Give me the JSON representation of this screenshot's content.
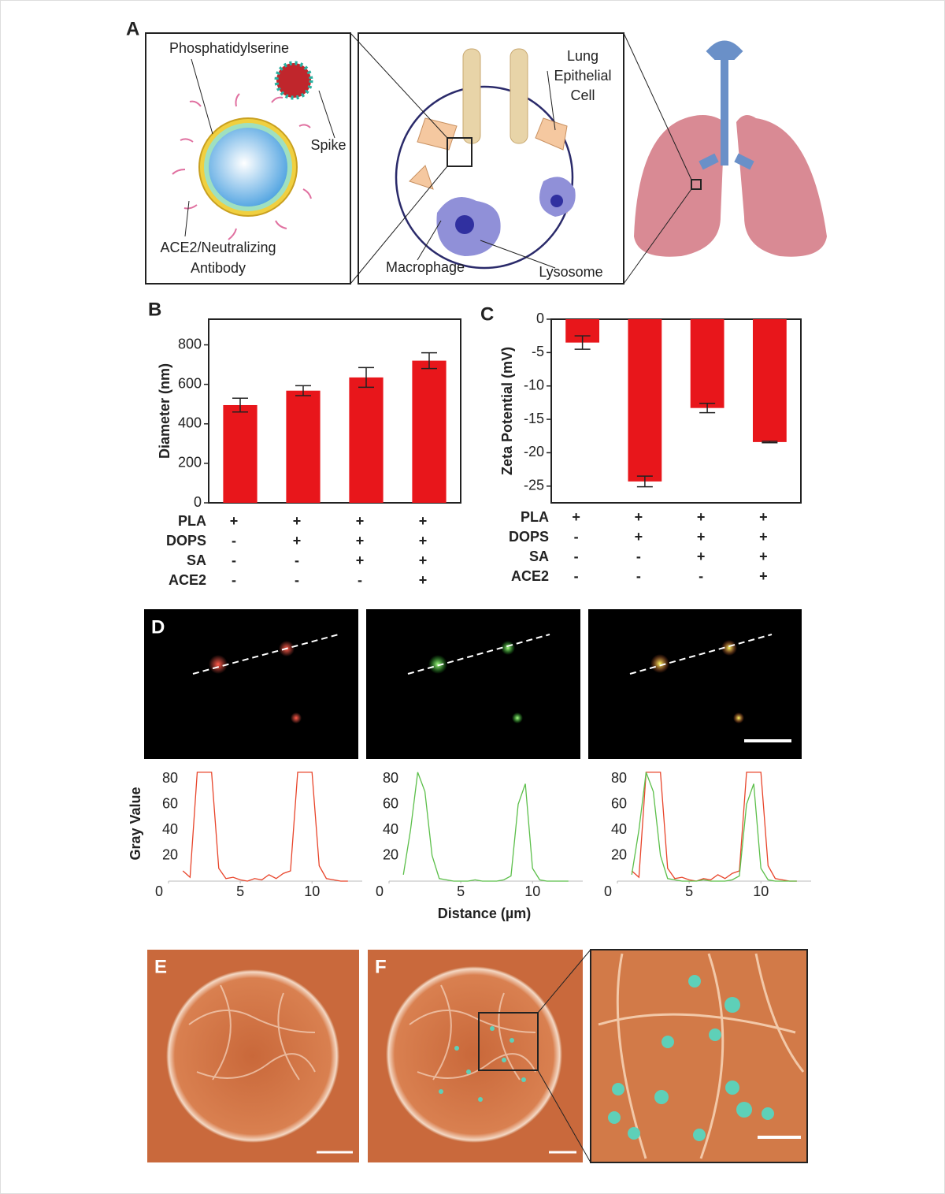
{
  "panel_labels": [
    "A",
    "B",
    "C",
    "D",
    "E",
    "F"
  ],
  "diagram": {
    "phosphatidylserine": "Phosphatidylserine",
    "spike": "Spike",
    "ace2_antibody": [
      "ACE2/Neutralizing",
      "Antibody"
    ],
    "lung_epithelial_cell": [
      "Lung",
      "Epithelial",
      "Cell"
    ],
    "macrophage": "Macrophage",
    "lysosome": "Lysosome"
  },
  "chart_data": [
    {
      "type": "bar",
      "y_label": "Diameter (nm)",
      "categories": [
        null,
        null,
        null,
        null
      ],
      "values": [
        495,
        568,
        635,
        720
      ],
      "errors": [
        35,
        25,
        50,
        40
      ],
      "color": "#e8161b",
      "ylim": [
        0,
        930
      ],
      "yticks": [
        0,
        200,
        400,
        600,
        800
      ],
      "condition_table": {
        "rows": [
          "PLA",
          "DOPS",
          "SA",
          "ACE2"
        ],
        "cells": [
          [
            "+",
            "+",
            "+",
            "+"
          ],
          [
            "-",
            "+",
            "+",
            "+"
          ],
          [
            "-",
            "-",
            "+",
            "+"
          ],
          [
            "-",
            "-",
            "-",
            "+"
          ]
        ]
      }
    },
    {
      "type": "bar",
      "y_label": "Zeta Potential (mV)",
      "categories": [
        null,
        null,
        null,
        null
      ],
      "values": [
        -3.5,
        -24.3,
        -13.3,
        -18.4
      ],
      "errors": [
        1,
        0.8,
        0.7,
        0.1
      ],
      "color": "#e8161b",
      "ylim": [
        -27.5,
        0
      ],
      "yticks": [
        0,
        -5,
        -10,
        -15,
        -20,
        -25
      ],
      "condition_table": {
        "rows": [
          "PLA",
          "DOPS",
          "SA",
          "ACE2"
        ],
        "cells": [
          [
            "+",
            "+",
            "+",
            "+"
          ],
          [
            "-",
            "+",
            "+",
            "+"
          ],
          [
            "-",
            "-",
            "+",
            "+"
          ],
          [
            "-",
            "-",
            "-",
            "+"
          ]
        ]
      }
    },
    {
      "type": "line",
      "y_label": "Gray Value",
      "x": [
        1,
        1.5,
        2,
        2.5,
        3,
        3.5,
        4,
        4.5,
        5,
        5.5,
        6,
        6.5,
        7,
        7.5,
        8,
        8.5,
        9,
        9.5,
        10,
        10.5,
        11,
        11.5,
        12,
        12.5
      ],
      "series": [
        {
          "color": "#e8442a",
          "values": [
            8,
            3,
            85,
            85,
            85,
            10,
            2,
            3,
            1,
            0,
            2,
            1,
            5,
            2,
            6,
            8,
            85,
            85,
            85,
            12,
            2,
            1,
            0,
            0
          ]
        }
      ],
      "xlim": [
        0,
        13.5
      ],
      "xticks": [
        0,
        5,
        10
      ],
      "ylim": [
        0,
        88
      ],
      "yticks": [
        20,
        40,
        60,
        80
      ]
    },
    {
      "type": "line",
      "x_label": "Distance (µm)",
      "x": [
        1,
        1.5,
        2,
        2.5,
        3,
        3.5,
        4,
        4.5,
        5,
        5.5,
        6,
        6.5,
        7,
        7.5,
        8,
        8.5,
        9,
        9.5,
        10,
        10.5,
        11,
        11.5,
        12,
        12.5
      ],
      "series": [
        {
          "color": "#5cbf4a",
          "values": [
            5,
            40,
            85,
            70,
            20,
            2,
            1,
            0,
            0,
            0,
            1,
            0,
            0,
            0,
            1,
            4,
            60,
            76,
            10,
            1,
            0,
            0,
            0,
            0
          ]
        }
      ],
      "xlim": [
        0,
        13.5
      ],
      "xticks": [
        0,
        5,
        10
      ],
      "ylim": [
        0,
        88
      ],
      "yticks": [
        20,
        40,
        60,
        80
      ]
    },
    {
      "type": "line",
      "x": [
        1,
        1.5,
        2,
        2.5,
        3,
        3.5,
        4,
        4.5,
        5,
        5.5,
        6,
        6.5,
        7,
        7.5,
        8,
        8.5,
        9,
        9.5,
        10,
        10.5,
        11,
        11.5,
        12,
        12.5
      ],
      "series": [
        {
          "color": "#e8442a",
          "values": [
            8,
            3,
            85,
            85,
            85,
            10,
            2,
            3,
            1,
            0,
            2,
            1,
            5,
            2,
            6,
            8,
            85,
            85,
            85,
            12,
            2,
            1,
            0,
            0
          ]
        },
        {
          "color": "#5cbf4a",
          "values": [
            5,
            40,
            85,
            70,
            20,
            2,
            1,
            0,
            0,
            0,
            1,
            0,
            0,
            0,
            1,
            4,
            60,
            76,
            10,
            1,
            0,
            0,
            0,
            0
          ]
        }
      ],
      "xlim": [
        0,
        13.5
      ],
      "xticks": [
        0,
        5,
        10
      ],
      "ylim": [
        0,
        88
      ],
      "yticks": [
        20,
        40,
        60,
        80
      ]
    }
  ]
}
